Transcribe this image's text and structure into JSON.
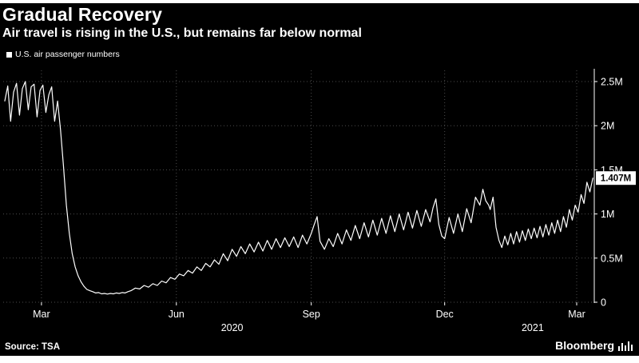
{
  "footer": {
    "source": "Source: TSA",
    "brand": "Bloomberg"
  },
  "chart_data": {
    "type": "line",
    "title": "Gradual Recovery",
    "subtitle": "Air travel is rising in the U.S., but remains far below normal",
    "series_name": "U.S. air passenger numbers",
    "xlabel": "",
    "ylabel": "",
    "x_unit": "days since 2020-02-05",
    "x_range": [
      0,
      402
    ],
    "ylim": [
      0,
      2.5
    ],
    "grid": "dotted",
    "legend_position": "top-left",
    "line_color": "#ffffff",
    "background": "#000000",
    "last_point_label": "1.407M",
    "last_point_value": 1.407,
    "yticks": [
      {
        "v": 0,
        "label": "0"
      },
      {
        "v": 0.5,
        "label": "0.5M"
      },
      {
        "v": 1,
        "label": "1M"
      },
      {
        "v": 1.5,
        "label": "1.5M"
      },
      {
        "v": 2,
        "label": "2M"
      },
      {
        "v": 2.5,
        "label": "2.5M"
      }
    ],
    "xticks": [
      {
        "day": 25,
        "label": "Mar"
      },
      {
        "day": 117,
        "label": "Jun"
      },
      {
        "day": 209,
        "label": "Sep"
      },
      {
        "day": 300,
        "label": "Dec"
      },
      {
        "day": 390,
        "label": "Mar"
      }
    ],
    "year_labels": [
      {
        "day": 155,
        "label": "2020"
      },
      {
        "day": 360,
        "label": "2021"
      }
    ],
    "days": [
      0,
      2,
      4,
      6,
      8,
      10,
      12,
      14,
      16,
      18,
      20,
      22,
      24,
      26,
      28,
      30,
      32,
      34,
      36,
      38,
      40,
      42,
      44,
      46,
      48,
      50,
      52,
      54,
      56,
      58,
      60,
      62,
      64,
      66,
      68,
      70,
      72,
      74,
      76,
      78,
      80,
      82,
      84,
      86,
      89,
      92,
      95,
      98,
      101,
      104,
      107,
      110,
      113,
      116,
      119,
      122,
      125,
      128,
      131,
      134,
      137,
      140,
      143,
      146,
      149,
      152,
      155,
      158,
      161,
      164,
      167,
      170,
      173,
      176,
      179,
      182,
      185,
      188,
      191,
      194,
      197,
      200,
      203,
      206,
      209,
      211,
      213,
      215,
      218,
      221,
      224,
      227,
      230,
      233,
      236,
      239,
      242,
      245,
      248,
      251,
      254,
      257,
      260,
      263,
      266,
      269,
      272,
      275,
      278,
      281,
      284,
      287,
      290,
      292,
      294,
      296,
      298,
      300,
      303,
      306,
      309,
      312,
      315,
      318,
      321,
      324,
      326,
      328,
      330,
      331,
      333,
      335,
      337,
      339,
      341,
      343,
      345,
      347,
      349,
      351,
      353,
      355,
      357,
      359,
      361,
      363,
      365,
      367,
      369,
      371,
      373,
      375,
      377,
      379,
      381,
      383,
      385,
      387,
      389,
      391,
      393,
      395,
      397,
      399,
      401
    ],
    "values": [
      2.28,
      2.45,
      2.05,
      2.38,
      2.48,
      2.12,
      2.42,
      2.5,
      2.18,
      2.44,
      2.47,
      2.1,
      2.4,
      2.46,
      2.15,
      2.35,
      2.44,
      2.05,
      2.28,
      1.95,
      1.55,
      1.1,
      0.78,
      0.55,
      0.4,
      0.3,
      0.23,
      0.18,
      0.145,
      0.13,
      0.12,
      0.105,
      0.11,
      0.095,
      0.1,
      0.092,
      0.1,
      0.095,
      0.105,
      0.1,
      0.11,
      0.105,
      0.12,
      0.13,
      0.16,
      0.15,
      0.19,
      0.17,
      0.21,
      0.19,
      0.24,
      0.22,
      0.28,
      0.26,
      0.32,
      0.3,
      0.36,
      0.33,
      0.4,
      0.36,
      0.44,
      0.4,
      0.48,
      0.43,
      0.55,
      0.47,
      0.6,
      0.52,
      0.63,
      0.55,
      0.66,
      0.57,
      0.68,
      0.58,
      0.7,
      0.6,
      0.72,
      0.62,
      0.73,
      0.63,
      0.74,
      0.62,
      0.76,
      0.66,
      0.78,
      0.88,
      0.97,
      0.69,
      0.6,
      0.72,
      0.63,
      0.78,
      0.66,
      0.82,
      0.7,
      0.87,
      0.72,
      0.9,
      0.74,
      0.93,
      0.76,
      0.95,
      0.78,
      0.98,
      0.8,
      1.0,
      0.82,
      1.02,
      0.84,
      1.04,
      0.86,
      1.05,
      0.91,
      1.07,
      1.17,
      0.88,
      0.75,
      0.72,
      0.96,
      0.78,
      1.0,
      0.8,
      1.06,
      0.9,
      1.19,
      1.1,
      1.28,
      1.15,
      1.1,
      1.05,
      1.19,
      0.85,
      0.7,
      0.62,
      0.75,
      0.65,
      0.78,
      0.66,
      0.8,
      0.68,
      0.81,
      0.7,
      0.83,
      0.72,
      0.84,
      0.73,
      0.86,
      0.74,
      0.88,
      0.76,
      0.9,
      0.78,
      0.93,
      0.8,
      0.97,
      0.85,
      1.05,
      0.93,
      1.1,
      1.02,
      1.22,
      1.12,
      1.36,
      1.25,
      1.407
    ]
  }
}
